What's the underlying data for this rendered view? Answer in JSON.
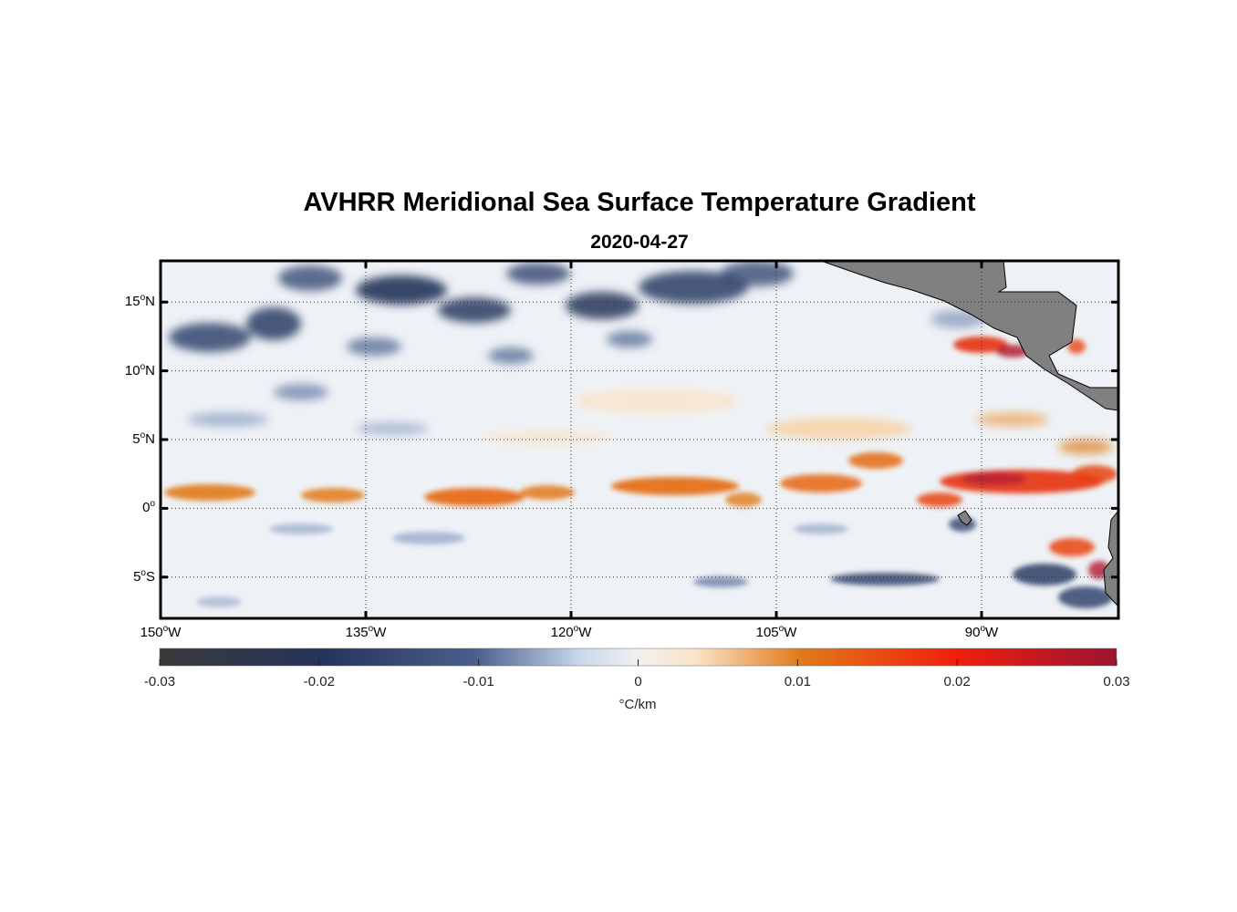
{
  "header": {
    "title": "AVHRR Meridional Sea Surface Temperature Gradient",
    "subtitle": "2020-04-27"
  },
  "map": {
    "lon_range": [
      -150,
      -80
    ],
    "lat_range": [
      -8,
      18
    ],
    "lat_ticks": [
      {
        "value": 15,
        "num": "15",
        "hemi": "N"
      },
      {
        "value": 10,
        "num": "10",
        "hemi": "N"
      },
      {
        "value": 5,
        "num": "5",
        "hemi": "N"
      },
      {
        "value": 0,
        "num": "0",
        "hemi": ""
      },
      {
        "value": -5,
        "num": "5",
        "hemi": "S"
      }
    ],
    "lon_ticks": [
      {
        "value": -150,
        "num": "150",
        "hemi": "W"
      },
      {
        "value": -135,
        "num": "135",
        "hemi": "W"
      },
      {
        "value": -120,
        "num": "120",
        "hemi": "W"
      },
      {
        "value": -105,
        "num": "105",
        "hemi": "W"
      },
      {
        "value": -90,
        "num": "90",
        "hemi": "W"
      }
    ],
    "grid": true,
    "land_color": "#808080"
  },
  "colorbar": {
    "min": -0.03,
    "max": 0.03,
    "ticks": [
      "-0.03",
      "-0.02",
      "-0.01",
      "0",
      "0.01",
      "0.02",
      "0.03"
    ],
    "units": "°C/km",
    "colors": [
      "#3a3a3c",
      "#25345a",
      "#4a5f8e",
      "#c9d8ec",
      "#f1f1ee",
      "#fbe3c8",
      "#e07a1a",
      "#f0200c",
      "#9c1333"
    ]
  },
  "features": [
    {
      "type": "front",
      "lon": [
        -149,
        -143
      ],
      "lat": [
        1.2,
        1.2
      ],
      "strength": 0.008
    },
    {
      "type": "front",
      "lon": [
        -140,
        -135
      ],
      "lat": [
        1.0,
        1.0
      ],
      "strength": 0.008
    },
    {
      "type": "front",
      "lon": [
        -133,
        -120
      ],
      "lat": [
        0.8,
        1.6
      ],
      "strength": 0.011
    },
    {
      "type": "front",
      "lon": [
        -118,
        -108
      ],
      "lat": [
        1.5,
        1.8
      ],
      "strength": 0.011
    },
    {
      "type": "front",
      "lon": [
        -105,
        -97
      ],
      "lat": [
        1.2,
        3.0
      ],
      "strength": 0.012
    },
    {
      "type": "front",
      "lon": [
        -92,
        -80
      ],
      "lat": [
        1.5,
        2.3
      ],
      "strength": 0.022
    },
    {
      "type": "front",
      "lon": [
        -91,
        -87
      ],
      "lat": [
        12.0,
        12.0
      ],
      "strength": 0.022
    }
  ]
}
